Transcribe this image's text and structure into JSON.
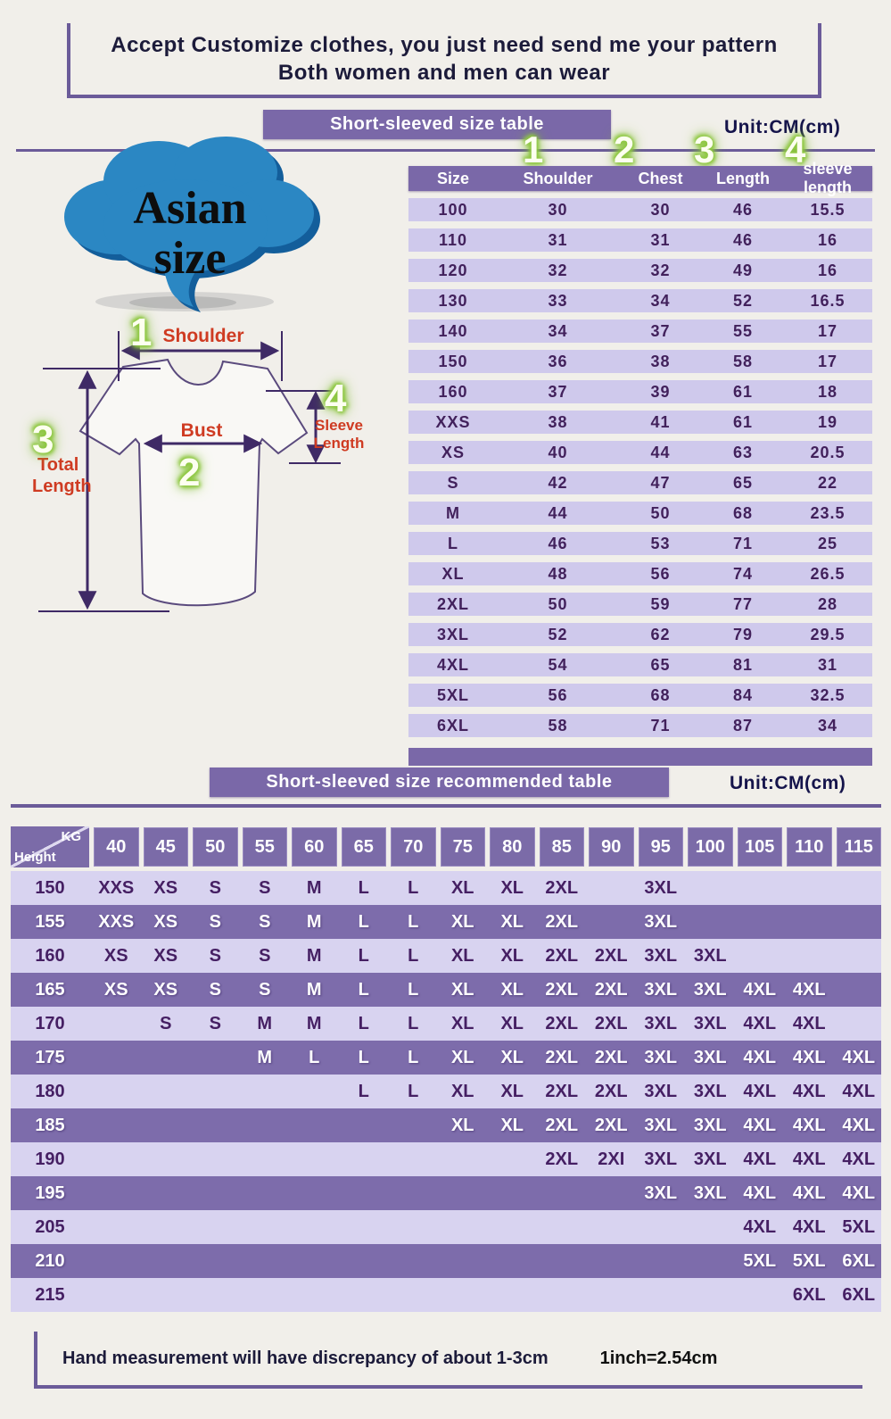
{
  "banner": {
    "line1": "Accept Customize clothes, you just need send me your pattern",
    "line2": "Both women and men can wear"
  },
  "bubble": {
    "line1": "Asian",
    "line2": "size"
  },
  "size_table_section": {
    "title": "Short-sleeved size  table",
    "unit": "Unit:CM(cm)",
    "markers": [
      "1",
      "2",
      "3",
      "4"
    ],
    "columns": [
      "Size",
      "Shoulder",
      "Chest",
      "Length",
      "sleeve length"
    ],
    "rows": [
      [
        "100",
        "30",
        "30",
        "46",
        "15.5"
      ],
      [
        "110",
        "31",
        "31",
        "46",
        "16"
      ],
      [
        "120",
        "32",
        "32",
        "49",
        "16"
      ],
      [
        "130",
        "33",
        "34",
        "52",
        "16.5"
      ],
      [
        "140",
        "34",
        "37",
        "55",
        "17"
      ],
      [
        "150",
        "36",
        "38",
        "58",
        "17"
      ],
      [
        "160",
        "37",
        "39",
        "61",
        "18"
      ],
      [
        "XXS",
        "38",
        "41",
        "61",
        "19"
      ],
      [
        "XS",
        "40",
        "44",
        "63",
        "20.5"
      ],
      [
        "S",
        "42",
        "47",
        "65",
        "22"
      ],
      [
        "M",
        "44",
        "50",
        "68",
        "23.5"
      ],
      [
        "L",
        "46",
        "53",
        "71",
        "25"
      ],
      [
        "XL",
        "48",
        "56",
        "74",
        "26.5"
      ],
      [
        "2XL",
        "50",
        "59",
        "77",
        "28"
      ],
      [
        "3XL",
        "52",
        "62",
        "79",
        "29.5"
      ],
      [
        "4XL",
        "54",
        "65",
        "81",
        "31"
      ],
      [
        "5XL",
        "56",
        "68",
        "84",
        "32.5"
      ],
      [
        "6XL",
        "58",
        "71",
        "87",
        "34"
      ]
    ]
  },
  "diagram": {
    "markers": [
      "1",
      "2",
      "3",
      "4"
    ],
    "shoulder_label": "Shoulder",
    "bust_label": "Bust",
    "total_length_label_1": "Total",
    "total_length_label_2": "Length",
    "sleeve_label_1": "Sleeve",
    "sleeve_label_2": "Length"
  },
  "recommended_section": {
    "title": "Short-sleeved size recommended table",
    "unit": "Unit:CM(cm)",
    "corner": {
      "top": "KG",
      "bottom": "Height"
    },
    "weights": [
      "40",
      "45",
      "50",
      "55",
      "60",
      "65",
      "70",
      "75",
      "80",
      "85",
      "90",
      "95",
      "100",
      "105",
      "110",
      "115"
    ],
    "rows": [
      {
        "height": "150",
        "cells": [
          "XXS",
          "XS",
          "S",
          "S",
          "M",
          "L",
          "L",
          "XL",
          "XL",
          "2XL",
          "",
          "3XL",
          "",
          "",
          "",
          ""
        ]
      },
      {
        "height": "155",
        "cells": [
          "XXS",
          "XS",
          "S",
          "S",
          "M",
          "L",
          "L",
          "XL",
          "XL",
          "2XL",
          "",
          "3XL",
          "",
          "",
          "",
          ""
        ]
      },
      {
        "height": "160",
        "cells": [
          "XS",
          "XS",
          "S",
          "S",
          "M",
          "L",
          "L",
          "XL",
          "XL",
          "2XL",
          "2XL",
          "3XL",
          "3XL",
          "",
          "",
          ""
        ]
      },
      {
        "height": "165",
        "cells": [
          "XS",
          "XS",
          "S",
          "S",
          "M",
          "L",
          "L",
          "XL",
          "XL",
          "2XL",
          "2XL",
          "3XL",
          "3XL",
          "4XL",
          "4XL",
          ""
        ]
      },
      {
        "height": "170",
        "cells": [
          "",
          "S",
          "S",
          "M",
          "M",
          "L",
          "L",
          "XL",
          "XL",
          "2XL",
          "2XL",
          "3XL",
          "3XL",
          "4XL",
          "4XL",
          ""
        ]
      },
      {
        "height": "175",
        "cells": [
          "",
          "",
          "",
          "M",
          "L",
          "L",
          "L",
          "XL",
          "XL",
          "2XL",
          "2XL",
          "3XL",
          "3XL",
          "4XL",
          "4XL",
          "4XL"
        ]
      },
      {
        "height": "180",
        "cells": [
          "",
          "",
          "",
          "",
          "",
          "L",
          "L",
          "XL",
          "XL",
          "2XL",
          "2XL",
          "3XL",
          "3XL",
          "4XL",
          "4XL",
          "4XL"
        ]
      },
      {
        "height": "185",
        "cells": [
          "",
          "",
          "",
          "",
          "",
          "",
          "",
          "XL",
          "XL",
          "2XL",
          "2XL",
          "3XL",
          "3XL",
          "4XL",
          "4XL",
          "4XL"
        ]
      },
      {
        "height": "190",
        "cells": [
          "",
          "",
          "",
          "",
          "",
          "",
          "",
          "",
          "",
          "2XL",
          "2XI",
          "3XL",
          "3XL",
          "4XL",
          "4XL",
          "4XL"
        ]
      },
      {
        "height": "195",
        "cells": [
          "",
          "",
          "",
          "",
          "",
          "",
          "",
          "",
          "",
          "",
          "",
          "3XL",
          "3XL",
          "4XL",
          "4XL",
          "4XL"
        ]
      },
      {
        "height": "205",
        "cells": [
          "",
          "",
          "",
          "",
          "",
          "",
          "",
          "",
          "",
          "",
          "",
          "",
          "",
          "4XL",
          "4XL",
          "5XL"
        ]
      },
      {
        "height": "210",
        "cells": [
          "",
          "",
          "",
          "",
          "",
          "",
          "",
          "",
          "",
          "",
          "",
          "",
          "",
          "5XL",
          "5XL",
          "6XL"
        ]
      },
      {
        "height": "215",
        "cells": [
          "",
          "",
          "",
          "",
          "",
          "",
          "",
          "",
          "",
          "",
          "",
          "",
          "",
          "",
          "6XL",
          "6XL"
        ]
      }
    ]
  },
  "footer": {
    "note": "Hand measurement will have discrepancy of about  1-3cm",
    "conversion": "1inch=2.54cm"
  },
  "colors": {
    "background": "#f1efea",
    "banner_purple": "#7a68a8",
    "line_purple": "#6b5b99",
    "row_light": "#d8d3f0",
    "row_dark": "#7d6cab",
    "size_row": "#cfc9ec",
    "text_navy": "#1c1b3a",
    "text_purple": "#42215c",
    "label_red": "#cf3b22",
    "marker_green": "#8dc63f",
    "cloud_blue": "#2b87c3"
  }
}
